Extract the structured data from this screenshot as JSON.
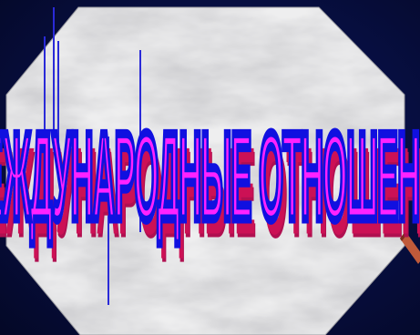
{
  "slide": {
    "title": "МЕЖДУНАРОДНЫЕ ОТНОШЕНИЯ",
    "colors": {
      "background": "#060b38",
      "panel_marble": "#e8e8e8",
      "title_fill": "#ff22ff",
      "title_outline": "#1010e0",
      "title_shadow": "#cc1155"
    },
    "icons": {
      "pencil": "pencil-icon"
    }
  }
}
